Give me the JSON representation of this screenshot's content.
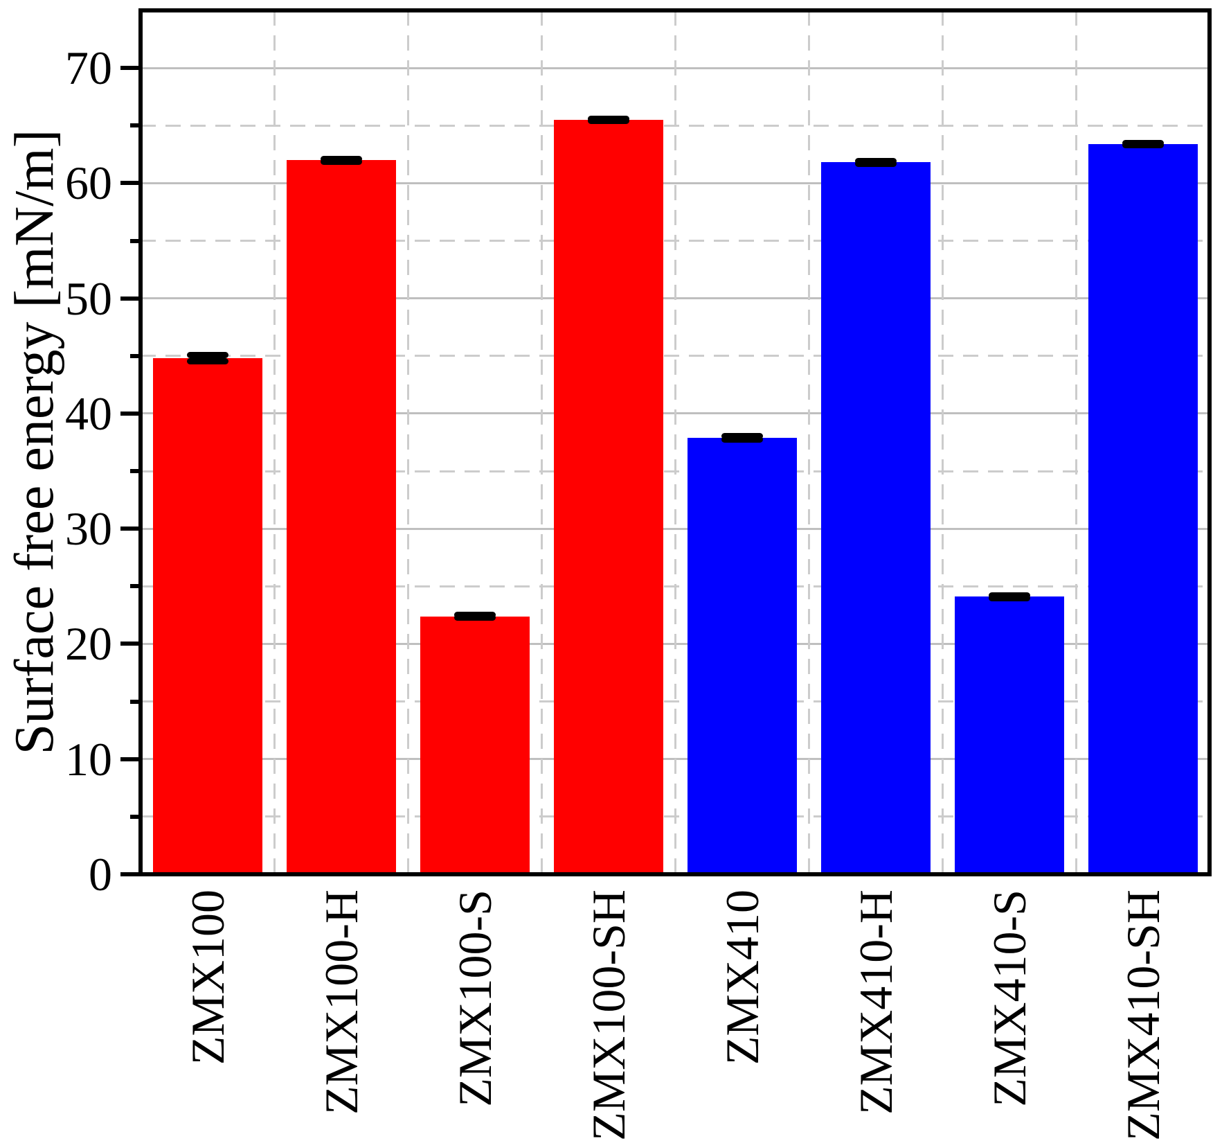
{
  "y_axis": {
    "label": "Surface free energy [mN/m]",
    "major_tick_labels": [
      "0",
      "10",
      "20",
      "30",
      "40",
      "50",
      "60",
      "70"
    ],
    "minor_step": 5
  },
  "chart_data": {
    "type": "bar",
    "title": "",
    "xlabel": "",
    "ylabel": "Surface free energy [mN/m]",
    "categories": [
      "ZMX100",
      "ZMX100-H",
      "ZMX100-S",
      "ZMX100-SH",
      "ZMX410",
      "ZMX410-H",
      "ZMX410-S",
      "ZMX410-SH"
    ],
    "values": [
      44.8,
      62.0,
      22.4,
      65.5,
      37.9,
      61.8,
      24.1,
      63.4
    ],
    "errors": [
      0.25,
      0.12,
      0.12,
      0.1,
      0.15,
      0.1,
      0.12,
      0.1
    ],
    "bar_colors": [
      "#ff0000",
      "#ff0000",
      "#ff0000",
      "#ff0000",
      "#0000ff",
      "#0000ff",
      "#0000ff",
      "#0000ff"
    ],
    "ylim": [
      0,
      75
    ],
    "y_major_ticks": [
      0,
      10,
      20,
      30,
      40,
      50,
      60,
      70
    ],
    "y_minor_ticks": [
      5,
      15,
      25,
      35,
      45,
      55,
      65
    ],
    "grid": {
      "horizontal_major": "solid",
      "horizontal_minor": "dashed",
      "vertical_category_boundaries": "dashed"
    },
    "legend": "none",
    "error_bar_color": "#000000",
    "axis_color": "#000000",
    "grid_solid_color": "#bfbfbf",
    "grid_dash_color": "#cccccc"
  }
}
